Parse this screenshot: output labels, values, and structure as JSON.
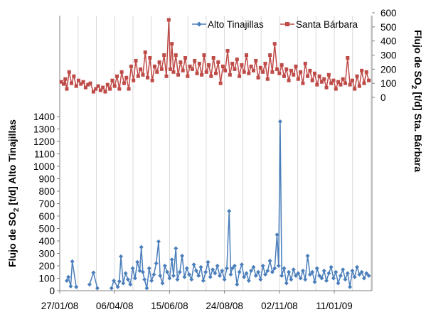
{
  "chart_data": {
    "type": "line",
    "title": "",
    "xlabel": "",
    "x_tick_labels": [
      "27/01/08",
      "06/04/08",
      "15/06/08",
      "24/08/08",
      "02/11/08",
      "11/01/09"
    ],
    "x_range": [
      "2008-01-27",
      "2009-02-28"
    ],
    "grid": {
      "vertical": true,
      "horizontal": false
    },
    "legend": {
      "placement": "top",
      "entries": [
        "Alto Tinajillas",
        "Santa Bárbara"
      ]
    },
    "y_left": {
      "label_parts": [
        "Flujo de SO",
        "2",
        " [t/d] Alto Tinajillas"
      ],
      "range": [
        0,
        1400
      ],
      "ticks": [
        0,
        100,
        200,
        300,
        400,
        500,
        600,
        700,
        800,
        900,
        1000,
        1100,
        1200,
        1300,
        1400
      ]
    },
    "y_right": {
      "label_parts": [
        "Flujo de SO",
        "2",
        " [t/d] Sta. Bárbara"
      ],
      "range": [
        0,
        600
      ],
      "ticks": [
        0,
        100,
        200,
        300,
        400,
        500,
        600
      ]
    },
    "series": [
      {
        "name": "Alto Tinajillas",
        "axis": "left",
        "color": "#4a7ebb",
        "marker": "diamond",
        "points": [
          [
            "2008-02-05",
            80
          ],
          [
            "2008-02-07",
            110
          ],
          [
            "2008-02-10",
            35
          ],
          [
            "2008-02-12",
            235
          ],
          [
            "2008-02-17",
            30
          ],
          [
            "2008-03-05",
            50
          ],
          [
            "2008-03-10",
            145
          ],
          [
            "2008-03-15",
            20
          ],
          [
            "2008-04-02",
            20
          ],
          [
            "2008-04-05",
            80
          ],
          [
            "2008-04-10",
            30
          ],
          [
            "2008-04-12",
            75
          ],
          [
            "2008-04-14",
            275
          ],
          [
            "2008-04-17",
            60
          ],
          [
            "2008-04-20",
            140
          ],
          [
            "2008-04-23",
            90
          ],
          [
            "2008-04-26",
            50
          ],
          [
            "2008-04-29",
            180
          ],
          [
            "2008-05-02",
            100
          ],
          [
            "2008-05-05",
            230
          ],
          [
            "2008-05-08",
            160
          ],
          [
            "2008-05-10",
            350
          ],
          [
            "2008-05-12",
            150
          ],
          [
            "2008-05-14",
            90
          ],
          [
            "2008-05-17",
            20
          ],
          [
            "2008-05-20",
            180
          ],
          [
            "2008-05-23",
            80
          ],
          [
            "2008-05-26",
            130
          ],
          [
            "2008-05-29",
            220
          ],
          [
            "2008-06-01",
            395
          ],
          [
            "2008-06-03",
            120
          ],
          [
            "2008-06-06",
            60
          ],
          [
            "2008-06-09",
            200
          ],
          [
            "2008-06-12",
            150
          ],
          [
            "2008-06-15",
            100
          ],
          [
            "2008-06-18",
            250
          ],
          [
            "2008-06-20",
            120
          ],
          [
            "2008-06-23",
            340
          ],
          [
            "2008-06-25",
            90
          ],
          [
            "2008-06-28",
            150
          ],
          [
            "2008-07-01",
            280
          ],
          [
            "2008-07-04",
            110
          ],
          [
            "2008-07-07",
            180
          ],
          [
            "2008-07-10",
            130
          ],
          [
            "2008-07-13",
            90
          ],
          [
            "2008-07-16",
            210
          ],
          [
            "2008-07-19",
            160
          ],
          [
            "2008-07-22",
            120
          ],
          [
            "2008-07-25",
            190
          ],
          [
            "2008-07-28",
            80
          ],
          [
            "2008-07-31",
            150
          ],
          [
            "2008-08-03",
            230
          ],
          [
            "2008-08-06",
            110
          ],
          [
            "2008-08-09",
            170
          ],
          [
            "2008-08-12",
            140
          ],
          [
            "2008-08-15",
            200
          ],
          [
            "2008-08-18",
            120
          ],
          [
            "2008-08-21",
            160
          ],
          [
            "2008-08-24",
            90
          ],
          [
            "2008-08-27",
            180
          ],
          [
            "2008-08-30",
            640
          ],
          [
            "2008-09-01",
            130
          ],
          [
            "2008-09-03",
            180
          ],
          [
            "2008-09-06",
            200
          ],
          [
            "2008-09-09",
            50
          ],
          [
            "2008-09-12",
            150
          ],
          [
            "2008-09-15",
            210
          ],
          [
            "2008-09-18",
            110
          ],
          [
            "2008-09-21",
            140
          ],
          [
            "2008-09-24",
            80
          ],
          [
            "2008-09-27",
            160
          ],
          [
            "2008-09-30",
            190
          ],
          [
            "2008-10-03",
            120
          ],
          [
            "2008-10-06",
            150
          ],
          [
            "2008-10-09",
            90
          ],
          [
            "2008-10-12",
            200
          ],
          [
            "2008-10-15",
            130
          ],
          [
            "2008-10-18",
            160
          ],
          [
            "2008-10-21",
            240
          ],
          [
            "2008-10-24",
            150
          ],
          [
            "2008-10-27",
            180
          ],
          [
            "2008-10-30",
            450
          ],
          [
            "2008-11-01",
            200
          ],
          [
            "2008-11-03",
            1360
          ],
          [
            "2008-11-05",
            120
          ],
          [
            "2008-11-08",
            180
          ],
          [
            "2008-11-11",
            60
          ],
          [
            "2008-11-14",
            150
          ],
          [
            "2008-11-17",
            90
          ],
          [
            "2008-11-20",
            170
          ],
          [
            "2008-11-23",
            120
          ],
          [
            "2008-11-26",
            140
          ],
          [
            "2008-11-29",
            100
          ],
          [
            "2008-12-02",
            160
          ],
          [
            "2008-12-05",
            90
          ],
          [
            "2008-12-08",
            280
          ],
          [
            "2008-12-11",
            130
          ],
          [
            "2008-12-14",
            150
          ],
          [
            "2008-12-17",
            70
          ],
          [
            "2008-12-20",
            180
          ],
          [
            "2008-12-23",
            120
          ],
          [
            "2008-12-26",
            100
          ],
          [
            "2008-12-29",
            160
          ],
          [
            "2009-01-01",
            80
          ],
          [
            "2009-01-04",
            140
          ],
          [
            "2009-01-07",
            190
          ],
          [
            "2009-01-10",
            100
          ],
          [
            "2009-01-13",
            150
          ],
          [
            "2009-01-16",
            60
          ],
          [
            "2009-01-19",
            120
          ],
          [
            "2009-01-22",
            170
          ],
          [
            "2009-01-25",
            90
          ],
          [
            "2009-01-28",
            140
          ],
          [
            "2009-01-31",
            30
          ],
          [
            "2009-02-03",
            160
          ],
          [
            "2009-02-06",
            110
          ],
          [
            "2009-02-09",
            190
          ],
          [
            "2009-02-12",
            130
          ],
          [
            "2009-02-15",
            150
          ],
          [
            "2009-02-18",
            100
          ],
          [
            "2009-02-21",
            140
          ],
          [
            "2009-02-24",
            120
          ]
        ]
      },
      {
        "name": "Santa Bárbara",
        "axis": "right",
        "color": "#be4b48",
        "marker": "square",
        "points": [
          [
            "2008-01-29",
            110
          ],
          [
            "2008-02-01",
            95
          ],
          [
            "2008-02-03",
            130
          ],
          [
            "2008-02-05",
            60
          ],
          [
            "2008-02-08",
            180
          ],
          [
            "2008-02-11",
            100
          ],
          [
            "2008-02-14",
            150
          ],
          [
            "2008-02-17",
            80
          ],
          [
            "2008-02-20",
            120
          ],
          [
            "2008-02-23",
            95
          ],
          [
            "2008-02-26",
            110
          ],
          [
            "2008-02-29",
            70
          ],
          [
            "2008-03-03",
            90
          ],
          [
            "2008-03-06",
            100
          ],
          [
            "2008-03-10",
            40
          ],
          [
            "2008-03-13",
            60
          ],
          [
            "2008-03-16",
            80
          ],
          [
            "2008-03-19",
            50
          ],
          [
            "2008-03-22",
            70
          ],
          [
            "2008-03-25",
            40
          ],
          [
            "2008-03-28",
            90
          ],
          [
            "2008-03-31",
            60
          ],
          [
            "2008-04-03",
            120
          ],
          [
            "2008-04-06",
            80
          ],
          [
            "2008-04-09",
            150
          ],
          [
            "2008-04-12",
            60
          ],
          [
            "2008-04-15",
            180
          ],
          [
            "2008-04-18",
            100
          ],
          [
            "2008-04-21",
            140
          ],
          [
            "2008-04-24",
            60
          ],
          [
            "2008-04-27",
            220
          ],
          [
            "2008-04-30",
            120
          ],
          [
            "2008-05-03",
            260
          ],
          [
            "2008-05-06",
            150
          ],
          [
            "2008-05-09",
            200
          ],
          [
            "2008-05-12",
            160
          ],
          [
            "2008-05-15",
            320
          ],
          [
            "2008-05-18",
            140
          ],
          [
            "2008-05-21",
            280
          ],
          [
            "2008-05-24",
            120
          ],
          [
            "2008-05-27",
            220
          ],
          [
            "2008-05-30",
            180
          ],
          [
            "2008-06-02",
            250
          ],
          [
            "2008-06-05",
            200
          ],
          [
            "2008-06-08",
            300
          ],
          [
            "2008-06-11",
            150
          ],
          [
            "2008-06-14",
            550
          ],
          [
            "2008-06-16",
            200
          ],
          [
            "2008-06-18",
            380
          ],
          [
            "2008-06-20",
            180
          ],
          [
            "2008-06-23",
            300
          ],
          [
            "2008-06-26",
            160
          ],
          [
            "2008-06-29",
            250
          ],
          [
            "2008-07-02",
            190
          ],
          [
            "2008-07-05",
            280
          ],
          [
            "2008-07-08",
            150
          ],
          [
            "2008-07-11",
            220
          ],
          [
            "2008-07-14",
            200
          ],
          [
            "2008-07-17",
            260
          ],
          [
            "2008-07-20",
            170
          ],
          [
            "2008-07-23",
            240
          ],
          [
            "2008-07-26",
            160
          ],
          [
            "2008-07-29",
            300
          ],
          [
            "2008-08-01",
            180
          ],
          [
            "2008-08-04",
            230
          ],
          [
            "2008-08-07",
            150
          ],
          [
            "2008-08-10",
            280
          ],
          [
            "2008-08-13",
            170
          ],
          [
            "2008-08-16",
            250
          ],
          [
            "2008-08-19",
            100
          ],
          [
            "2008-08-22",
            220
          ],
          [
            "2008-08-25",
            190
          ],
          [
            "2008-08-28",
            330
          ],
          [
            "2008-08-31",
            160
          ],
          [
            "2008-09-03",
            240
          ],
          [
            "2008-09-06",
            200
          ],
          [
            "2008-09-09",
            270
          ],
          [
            "2008-09-12",
            150
          ],
          [
            "2008-09-15",
            230
          ],
          [
            "2008-09-18",
            180
          ],
          [
            "2008-09-21",
            300
          ],
          [
            "2008-09-24",
            170
          ],
          [
            "2008-09-27",
            220
          ],
          [
            "2008-09-30",
            190
          ],
          [
            "2008-10-03",
            260
          ],
          [
            "2008-10-06",
            140
          ],
          [
            "2008-10-09",
            210
          ],
          [
            "2008-10-12",
            180
          ],
          [
            "2008-10-15",
            240
          ],
          [
            "2008-10-18",
            130
          ],
          [
            "2008-10-21",
            300
          ],
          [
            "2008-10-24",
            180
          ],
          [
            "2008-10-27",
            380
          ],
          [
            "2008-10-30",
            200
          ],
          [
            "2008-11-02",
            170
          ],
          [
            "2008-11-05",
            230
          ],
          [
            "2008-11-08",
            150
          ],
          [
            "2008-11-11",
            200
          ],
          [
            "2008-11-14",
            120
          ],
          [
            "2008-11-17",
            190
          ],
          [
            "2008-11-20",
            160
          ],
          [
            "2008-11-23",
            220
          ],
          [
            "2008-11-26",
            130
          ],
          [
            "2008-11-29",
            180
          ],
          [
            "2008-12-02",
            100
          ],
          [
            "2008-12-05",
            240
          ],
          [
            "2008-12-08",
            150
          ],
          [
            "2008-12-11",
            190
          ],
          [
            "2008-12-14",
            120
          ],
          [
            "2008-12-17",
            170
          ],
          [
            "2008-12-20",
            90
          ],
          [
            "2008-12-23",
            150
          ],
          [
            "2008-12-26",
            110
          ],
          [
            "2008-12-29",
            130
          ],
          [
            "2009-01-01",
            70
          ],
          [
            "2009-01-04",
            160
          ],
          [
            "2009-01-07",
            100
          ],
          [
            "2009-01-10",
            120
          ],
          [
            "2009-01-13",
            60
          ],
          [
            "2009-01-16",
            110
          ],
          [
            "2009-01-19",
            90
          ],
          [
            "2009-01-22",
            130
          ],
          [
            "2009-01-25",
            100
          ],
          [
            "2009-01-28",
            280
          ],
          [
            "2009-01-31",
            90
          ],
          [
            "2009-02-03",
            120
          ],
          [
            "2009-02-06",
            60
          ],
          [
            "2009-02-09",
            150
          ],
          [
            "2009-02-12",
            80
          ],
          [
            "2009-02-15",
            190
          ],
          [
            "2009-02-18",
            100
          ],
          [
            "2009-02-21",
            180
          ],
          [
            "2009-02-24",
            120
          ]
        ]
      }
    ]
  }
}
